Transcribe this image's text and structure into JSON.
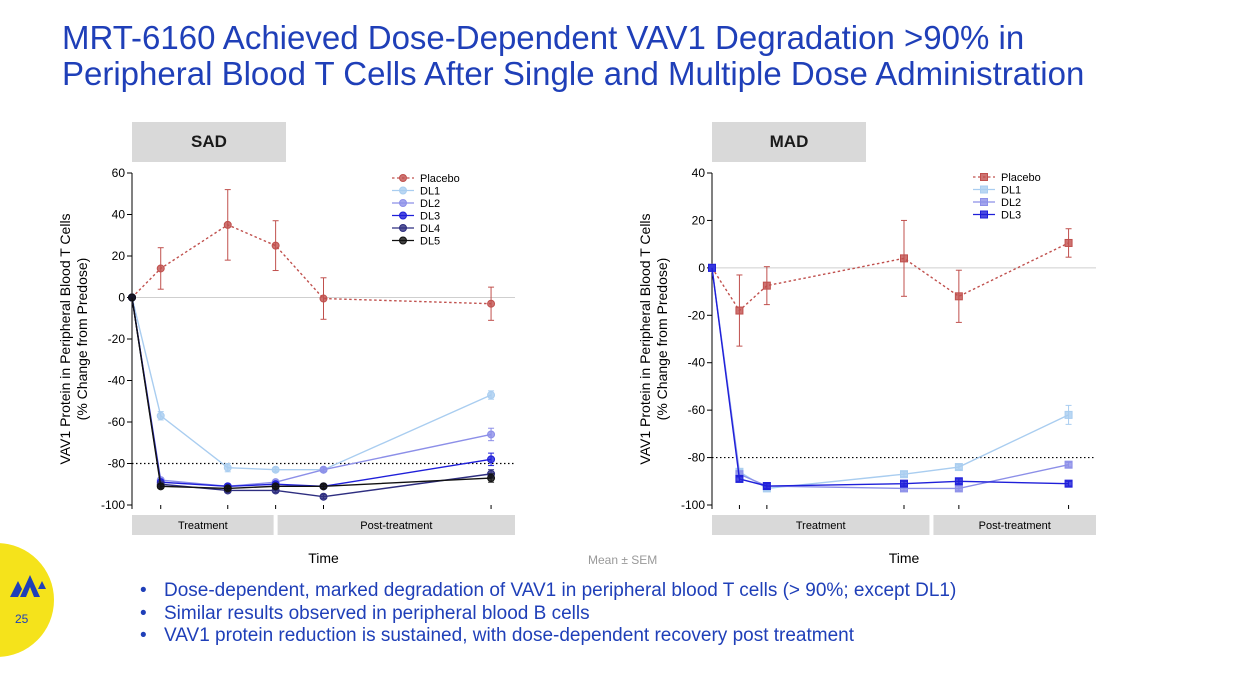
{
  "title": {
    "line1": "MRT-6160 Achieved Dose-Dependent VAV1 Degradation >90% in",
    "line2": "Peripheral Blood T Cells After Single and Multiple Dose Administration"
  },
  "footnote": "Mean ± SEM",
  "bullets": [
    "Dose-dependent, marked degradation of VAV1 in peripheral blood T cells (> 90%; except DL1)",
    "Similar results observed in peripheral blood B cells",
    "VAV1 protein reduction is sustained, with dose-dependent recovery post treatment"
  ],
  "page_number": "25",
  "colors": {
    "title": "#1f3fb8",
    "placebo": "#c0504d",
    "DL1": "#a9cdf0",
    "DL2": "#8c8fe8",
    "DL3": "#1f1fd9",
    "DL4": "#2e2e80",
    "DL5": "#111111",
    "badge": "#f5e31b"
  },
  "chart_data": [
    {
      "type": "line",
      "panel_label": "SAD",
      "xlabel": "Time",
      "ylabel": "VAV1 Protein in Peripheral Blood T Cells",
      "ylabel2": "(% Change from Predose)",
      "ylim": [
        -100,
        60
      ],
      "yticks": [
        60,
        40,
        20,
        0,
        -20,
        -40,
        -60,
        -80,
        -100
      ],
      "reference_lines": [
        0,
        -80
      ],
      "phase_bars": [
        {
          "label": "Treatment",
          "from": 0,
          "to": 3
        },
        {
          "label": "Post-treatment",
          "from": 3,
          "to": 8
        }
      ],
      "xlim": [
        0,
        8
      ],
      "x": [
        0,
        0.7,
        3,
        6.5
      ],
      "legend_position": "top-right",
      "series": [
        {
          "name": "Placebo",
          "marker": "circle",
          "color": "#c0504d",
          "dashed": true,
          "x": [
            0,
            0.6,
            2,
            3,
            4,
            7.5
          ],
          "values": [
            0,
            14,
            35,
            25,
            -0.5,
            -3
          ],
          "errors": [
            0,
            10,
            17,
            12,
            10,
            8
          ]
        },
        {
          "name": "DL1",
          "marker": "circle",
          "color": "#a9cdf0",
          "dashed": false,
          "x": [
            0,
            0.6,
            2,
            3,
            4,
            7.5
          ],
          "values": [
            0,
            -57,
            -82,
            -83,
            -83,
            -47
          ],
          "errors": [
            0,
            2,
            2,
            1,
            1,
            2
          ]
        },
        {
          "name": "DL2",
          "marker": "circle",
          "color": "#8c8fe8",
          "dashed": false,
          "x": [
            0,
            0.6,
            2,
            3,
            4,
            7.5
          ],
          "values": [
            0,
            -88,
            -91,
            -89,
            -83,
            -66
          ],
          "errors": [
            0,
            1,
            1,
            1,
            1,
            3
          ]
        },
        {
          "name": "DL3",
          "marker": "circle",
          "color": "#1f1fd9",
          "dashed": false,
          "x": [
            0,
            0.6,
            2,
            3,
            4,
            7.5
          ],
          "values": [
            0,
            -89,
            -91,
            -90,
            -91,
            -78
          ],
          "errors": [
            0,
            1,
            1,
            1,
            1,
            3
          ]
        },
        {
          "name": "DL4",
          "marker": "circle",
          "color": "#2e2e80",
          "dashed": false,
          "x": [
            0,
            0.6,
            2,
            3,
            4,
            7.5
          ],
          "values": [
            0,
            -90,
            -93,
            -93,
            -96,
            -85
          ],
          "errors": [
            0,
            1,
            1,
            1,
            1,
            2
          ]
        },
        {
          "name": "DL5",
          "marker": "circle",
          "color": "#111111",
          "dashed": false,
          "x": [
            0,
            0.6,
            2,
            3,
            4,
            7.5
          ],
          "values": [
            0,
            -91,
            -92,
            -91,
            -91,
            -87
          ],
          "errors": [
            0,
            1,
            1,
            1,
            1,
            2
          ]
        }
      ]
    },
    {
      "type": "line",
      "panel_label": "MAD",
      "xlabel": "Time",
      "ylabel": "VAV1 Protein in Peripheral Blood T Cells",
      "ylabel2": "(% Change from Predose)",
      "ylim": [
        -100,
        40
      ],
      "yticks": [
        40,
        20,
        0,
        -20,
        -40,
        -60,
        -80,
        -100
      ],
      "reference_lines": [
        0,
        -80
      ],
      "phase_bars": [
        {
          "label": "Treatment",
          "from": 0,
          "to": 4
        },
        {
          "label": "Post-treatment",
          "from": 4,
          "to": 7
        }
      ],
      "xlim": [
        0,
        7
      ],
      "legend_position": "top-right",
      "series": [
        {
          "name": "Placebo",
          "marker": "square",
          "color": "#c0504d",
          "dashed": true,
          "x": [
            0,
            0.5,
            1,
            3.5,
            4.5,
            6.5
          ],
          "values": [
            0,
            -18,
            -7.5,
            4,
            -12,
            10.5
          ],
          "errors": [
            0,
            15,
            8,
            16,
            11,
            6
          ]
        },
        {
          "name": "DL1",
          "marker": "square",
          "color": "#a9cdf0",
          "dashed": false,
          "x": [
            0,
            0.5,
            1,
            3.5,
            4.5,
            6.5
          ],
          "values": [
            0,
            -86,
            -93,
            -87,
            -84,
            -62
          ],
          "errors": [
            0,
            1,
            1,
            1,
            1,
            4
          ]
        },
        {
          "name": "DL2",
          "marker": "square",
          "color": "#8c8fe8",
          "dashed": false,
          "x": [
            0,
            0.5,
            1,
            3.5,
            4.5,
            6.5
          ],
          "values": [
            0,
            -87,
            -92,
            -93,
            -93,
            -83
          ],
          "errors": [
            0,
            1,
            1,
            1,
            1,
            1
          ]
        },
        {
          "name": "DL3",
          "marker": "square",
          "color": "#1f1fd9",
          "dashed": false,
          "x": [
            0,
            0.5,
            1,
            3.5,
            4.5,
            6.5
          ],
          "values": [
            0,
            -89,
            -92,
            -91,
            -90,
            -91
          ],
          "errors": [
            0,
            1,
            1,
            1,
            1,
            1
          ]
        }
      ]
    }
  ]
}
